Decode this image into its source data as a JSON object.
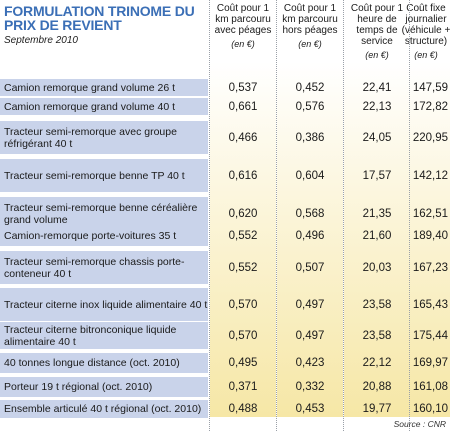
{
  "title": "FORMULATION TRINOME DU PRIX DE REVIENT",
  "subtitle": "Septembre 2010",
  "columns": [
    {
      "label": "Coût pour 1 km parcouru avec péages",
      "unit": "(en €)"
    },
    {
      "label": "Coût pour 1 km parcouru hors péages",
      "unit": "(en €)"
    },
    {
      "label": "Coût pour 1 heure de temps de service",
      "unit": "(en €)"
    },
    {
      "label": "Coût fixe journalier (véhicule + structure)",
      "unit": "(en €)"
    }
  ],
  "rows": [
    {
      "label": "Camion remorque grand volume 26 t",
      "values": [
        "0,537",
        "0,452",
        "22,41",
        "147,59"
      ]
    },
    {
      "label": "Camion remorque grand volume 40 t",
      "values": [
        "0,661",
        "0,576",
        "22,13",
        "172,82"
      ]
    },
    {
      "label": "Tracteur semi-remorque avec groupe réfrigérant 40 t",
      "values": [
        "0,466",
        "0,386",
        "24,05",
        "220,95"
      ]
    },
    {
      "label": "Tracteur semi-remorque benne TP 40 t",
      "values": [
        "0,616",
        "0,604",
        "17,57",
        "142,12"
      ]
    },
    {
      "label": "Tracteur semi-remorque benne céréalière grand volume",
      "values": [
        "0,620",
        "0,568",
        "21,35",
        "162,51"
      ]
    },
    {
      "label": "Camion-remorque porte-voitures 35 t",
      "values": [
        "0,552",
        "0,496",
        "21,60",
        "189,40"
      ]
    },
    {
      "label": "Tracteur semi-remorque chassis porte-conteneur 40 t",
      "values": [
        "0,552",
        "0,507",
        "20,03",
        "167,23"
      ]
    },
    {
      "label": "Tracteur citerne inox liquide alimentaire 40 t",
      "values": [
        "0,570",
        "0,497",
        "23,58",
        "165,43"
      ]
    },
    {
      "label": "Tracteur citerne bitronconique liquide alimentaire 40 t",
      "values": [
        "0,570",
        "0,497",
        "23,58",
        "175,44"
      ]
    },
    {
      "label": "40 tonnes longue distance (oct. 2010)",
      "values": [
        "0,495",
        "0,423",
        "22,12",
        "169,97"
      ]
    },
    {
      "label": "Porteur 19 t régional (oct. 2010)",
      "values": [
        "0,371",
        "0,332",
        "20,88",
        "161,08"
      ]
    },
    {
      "label": "Ensemble articulé 40 t régional (oct. 2010)",
      "values": [
        "0,488",
        "0,453",
        "19,77",
        "160,10"
      ]
    }
  ],
  "source": "Source : CNR",
  "colors": {
    "title": "#3b6fb6",
    "row_label_bg": "#c9d3ea",
    "col_gradient_top": "#ffffff",
    "col_gradient_bottom": "#f6e7a6"
  }
}
